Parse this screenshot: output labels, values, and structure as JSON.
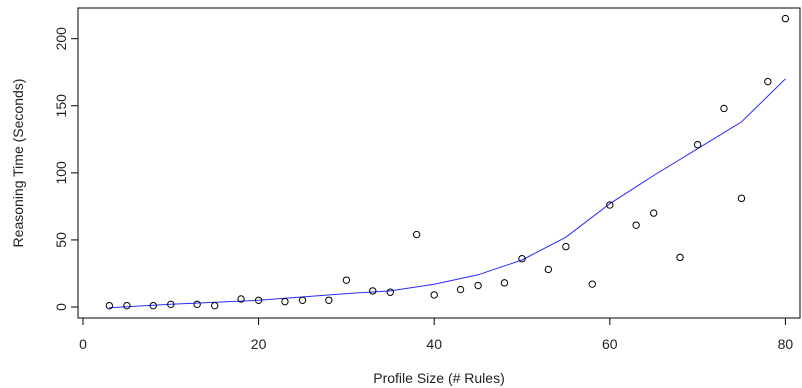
{
  "chart_data": {
    "type": "scatter",
    "title": "",
    "xlabel": "Profile Size (# Rules)",
    "ylabel": "Reasoning Time (Seconds)",
    "xlim": [
      0,
      82
    ],
    "ylim": [
      -8,
      222
    ],
    "xticks": [
      0,
      20,
      40,
      60,
      80
    ],
    "yticks": [
      0,
      50,
      100,
      150,
      200
    ],
    "grid": false,
    "legend": "none",
    "series": [
      {
        "kind": "points",
        "marker": "open-circle",
        "color": "#000000",
        "points": [
          [
            3,
            1
          ],
          [
            5,
            1
          ],
          [
            8,
            1
          ],
          [
            10,
            2
          ],
          [
            13,
            2
          ],
          [
            15,
            1
          ],
          [
            18,
            6
          ],
          [
            20,
            5
          ],
          [
            23,
            4
          ],
          [
            25,
            5
          ],
          [
            28,
            5
          ],
          [
            30,
            20
          ],
          [
            33,
            12
          ],
          [
            35,
            11
          ],
          [
            38,
            54
          ],
          [
            40,
            9
          ],
          [
            43,
            13
          ],
          [
            45,
            16
          ],
          [
            48,
            18
          ],
          [
            50,
            36
          ],
          [
            53,
            28
          ],
          [
            55,
            45
          ],
          [
            58,
            17
          ],
          [
            60,
            76
          ],
          [
            63,
            61
          ],
          [
            65,
            70
          ],
          [
            68,
            37
          ],
          [
            70,
            121
          ],
          [
            73,
            148
          ],
          [
            75,
            81
          ],
          [
            78,
            168
          ],
          [
            80,
            215
          ]
        ]
      },
      {
        "kind": "smooth-line",
        "color": "#2a2aff",
        "points": [
          [
            3,
            -0.5
          ],
          [
            10,
            2
          ],
          [
            20,
            5
          ],
          [
            30,
            10
          ],
          [
            35,
            12
          ],
          [
            40,
            17
          ],
          [
            45,
            24
          ],
          [
            50,
            35
          ],
          [
            55,
            52
          ],
          [
            60,
            77
          ],
          [
            65,
            98
          ],
          [
            70,
            118
          ],
          [
            75,
            138
          ],
          [
            80,
            170
          ]
        ]
      }
    ]
  }
}
